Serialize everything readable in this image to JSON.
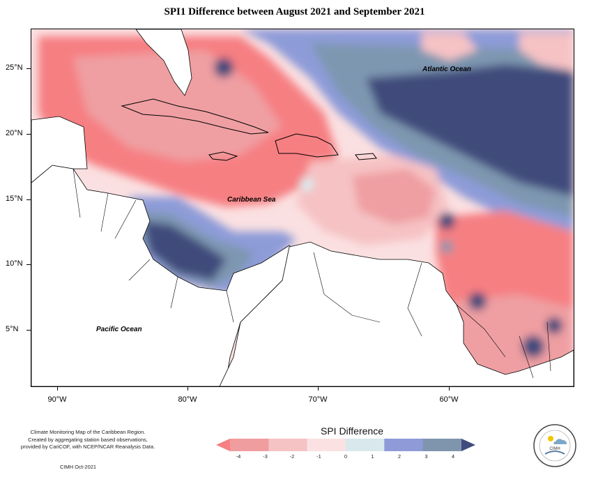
{
  "title": "SPI1 Difference between August 2021 and September 2021",
  "map": {
    "latitude_labels": [
      "25°N",
      "20°N",
      "15°N",
      "10°N",
      "5°N"
    ],
    "longitude_labels": [
      "90°W",
      "80°W",
      "70°W",
      "60°W"
    ],
    "ocean_labels": {
      "atlantic": "Atlantic Ocean",
      "caribbean": "Caribbean Sea",
      "pacific": "Pacific Ocean"
    },
    "colors": {
      "lt_-3": "#f67f82",
      "m3_m2": "#ef9fa2",
      "m2_m1": "#f6c2c4",
      "m1_0": "#fbe0e1",
      "0_1": "#d9e9ec",
      "1_2": "#8d9bd8",
      "2_3": "#7e97b0",
      "gt_3": "#3f4b7c",
      "land": "#ffffff"
    }
  },
  "legend": {
    "title": "SPI Difference",
    "tick_labels": [
      "-4",
      "-3",
      "-2",
      "-1",
      "0",
      "1",
      "2",
      "3",
      "4"
    ],
    "colors": [
      "#f67f82",
      "#f09da0",
      "#f6c3c5",
      "#fbe1e2",
      "#d8e8ed",
      "#8f9ad8",
      "#7f95ae",
      "#3f4a7d"
    ]
  },
  "credit": {
    "lines": [
      "Climate Monitoring Map of the Caribbean Region.",
      "Created by aggregating station based observations,",
      "provided by CariCOF, with NCEP/NCAR Reanalysis Data."
    ],
    "date": "CIMH Oct-2021"
  },
  "logo": {
    "text": "CIMH",
    "icon": "cimh-logo-icon"
  }
}
